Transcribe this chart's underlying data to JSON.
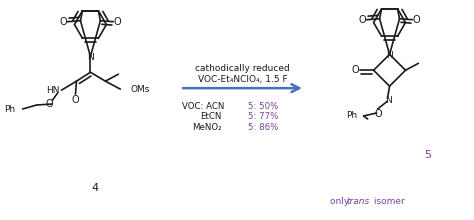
{
  "background_color": "#ffffff",
  "arrow_color": "#4a6fbd",
  "black": "#1a1a1a",
  "purple": "#7b3fa0",
  "above_arrow_line1": "cathodically reduced",
  "above_arrow_line2": "VOC-Et₄NClO₄, 1.5 F",
  "voc_label": "VOC: ACN",
  "etcn_label": "EtCN",
  "meno2_label": "MeNO₂",
  "yield1": "5: 50%",
  "yield2": "5: 77%",
  "yield3": "5: 86%",
  "compound4_label": "4",
  "compound5_label": "5",
  "trans_text1": "only ",
  "trans_text2": "trans",
  "trans_text3": " isomer",
  "figsize": [
    4.74,
    2.2
  ],
  "dpi": 100
}
